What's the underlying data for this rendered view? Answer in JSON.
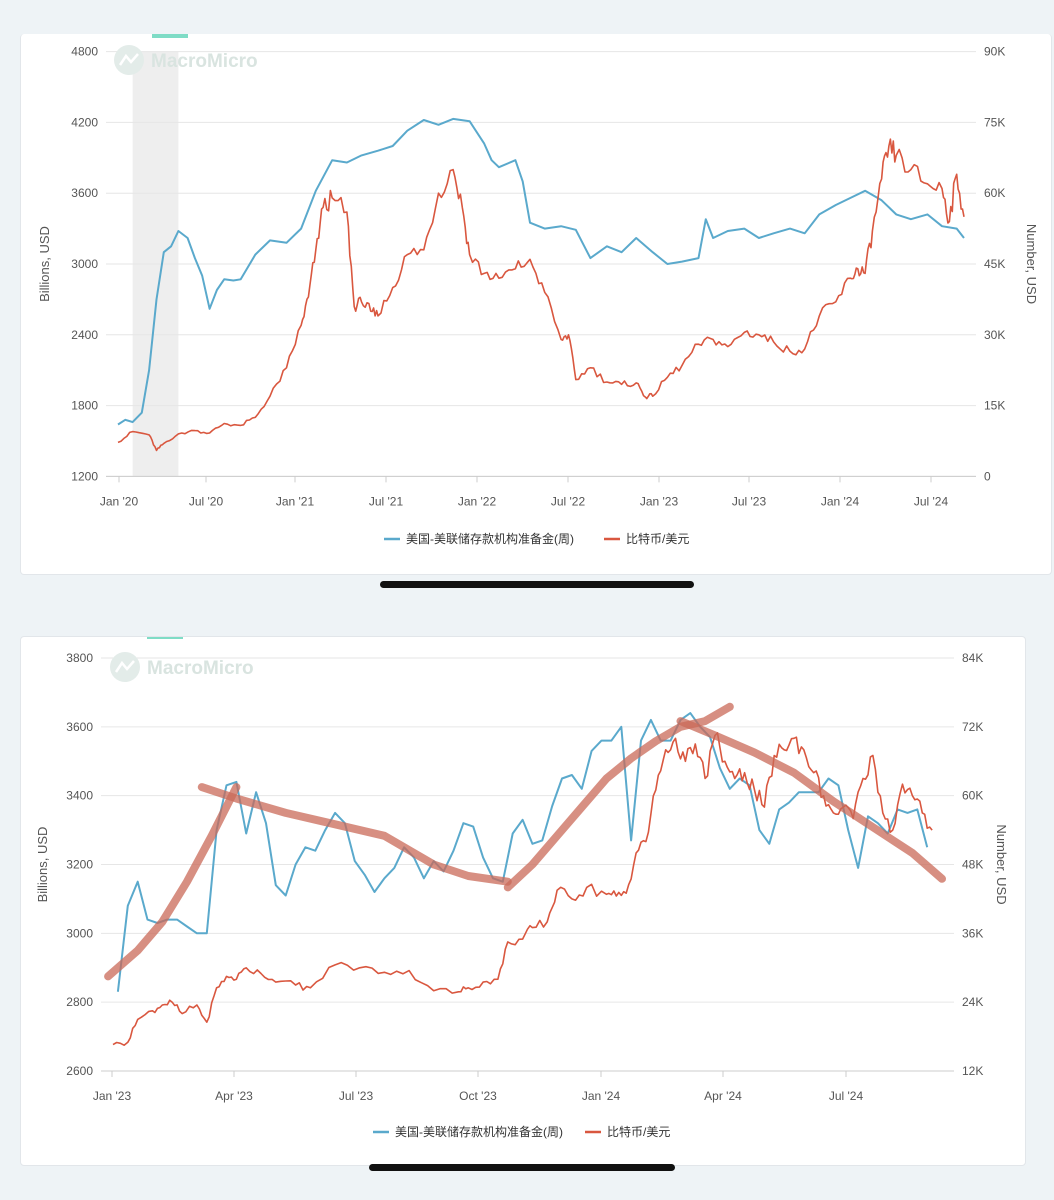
{
  "colors": {
    "reserves": "#5aa9cc",
    "bitcoin": "#d9573f",
    "trend": "#c96a58",
    "accent": "#7fdcc6",
    "grid": "#e6e6e6",
    "shade": "#eeeeee"
  },
  "chart_data": [
    {
      "type": "line",
      "watermark": "MacroMicro",
      "ylabel_left": "Billions, USD",
      "ylabel_right": "Number, USD",
      "ylim_left": [
        1200,
        4800
      ],
      "ylim_right": [
        0,
        90000
      ],
      "yticks_left": [
        "1200",
        "1800",
        "2400",
        "3000",
        "3600",
        "4200",
        "4800"
      ],
      "yticks_right": [
        "0",
        "15K",
        "30K",
        "45K",
        "60K",
        "75K",
        "90K"
      ],
      "xticks": [
        "Jan '20",
        "Jul '20",
        "Jan '21",
        "Jul '21",
        "Jan '22",
        "Jul '22",
        "Jan '23",
        "Jul '23",
        "Jan '24",
        "Jul '24"
      ],
      "xrange": [
        2020.0,
        2024.62
      ],
      "shaded_region": [
        2020.08,
        2020.33
      ],
      "legend": [
        "美国-美联储存款机构准备金(周)",
        "比特币/美元"
      ],
      "series": [
        {
          "name": "美国-美联储存款机构准备金(周)",
          "axis": "left",
          "x": [
            2020.0,
            2020.04,
            2020.08,
            2020.13,
            2020.17,
            2020.21,
            2020.25,
            2020.29,
            2020.33,
            2020.38,
            2020.42,
            2020.46,
            2020.5,
            2020.54,
            2020.58,
            2020.63,
            2020.67,
            2020.75,
            2020.83,
            2020.92,
            2021.0,
            2021.08,
            2021.17,
            2021.25,
            2021.33,
            2021.42,
            2021.5,
            2021.58,
            2021.67,
            2021.75,
            2021.83,
            2021.92,
            2022.0,
            2022.04,
            2022.08,
            2022.17,
            2022.21,
            2022.25,
            2022.33,
            2022.42,
            2022.5,
            2022.58,
            2022.67,
            2022.75,
            2022.83,
            2022.92,
            2023.0,
            2023.08,
            2023.17,
            2023.21,
            2023.25,
            2023.33,
            2023.42,
            2023.5,
            2023.58,
            2023.67,
            2023.75,
            2023.83,
            2023.92,
            2024.0,
            2024.08,
            2024.17,
            2024.25,
            2024.33,
            2024.42,
            2024.5,
            2024.58,
            2024.62
          ],
          "values": [
            1640,
            1680,
            1660,
            1740,
            2100,
            2700,
            3100,
            3150,
            3280,
            3220,
            3050,
            2900,
            2620,
            2780,
            2870,
            2860,
            2870,
            3080,
            3200,
            3180,
            3300,
            3620,
            3880,
            3860,
            3920,
            3960,
            4000,
            4130,
            4220,
            4180,
            4230,
            4210,
            4020,
            3880,
            3820,
            3880,
            3700,
            3350,
            3300,
            3320,
            3290,
            3050,
            3150,
            3100,
            3220,
            3100,
            3000,
            3020,
            3050,
            3380,
            3220,
            3280,
            3300,
            3220,
            3260,
            3300,
            3260,
            3420,
            3500,
            3560,
            3620,
            3540,
            3420,
            3380,
            3420,
            3320,
            3300,
            3220
          ]
        },
        {
          "name": "比特币/美元",
          "axis": "right",
          "x": [
            2020.0,
            2020.08,
            2020.17,
            2020.21,
            2020.25,
            2020.33,
            2020.42,
            2020.5,
            2020.58,
            2020.67,
            2020.75,
            2020.83,
            2020.92,
            2021.0,
            2021.04,
            2021.08,
            2021.12,
            2021.17,
            2021.25,
            2021.29,
            2021.33,
            2021.38,
            2021.42,
            2021.5,
            2021.58,
            2021.67,
            2021.75,
            2021.83,
            2021.88,
            2021.92,
            2022.0,
            2022.08,
            2022.17,
            2022.25,
            2022.33,
            2022.42,
            2022.46,
            2022.5,
            2022.58,
            2022.67,
            2022.75,
            2022.83,
            2022.88,
            2022.92,
            2023.0,
            2023.08,
            2023.17,
            2023.25,
            2023.33,
            2023.42,
            2023.5,
            2023.58,
            2023.67,
            2023.75,
            2023.83,
            2023.92,
            2024.0,
            2024.04,
            2024.08,
            2024.12,
            2024.17,
            2024.21,
            2024.25,
            2024.33,
            2024.42,
            2024.5,
            2024.54,
            2024.58,
            2024.62
          ],
          "values": [
            7200,
            9500,
            8800,
            5500,
            7000,
            9000,
            9700,
            9200,
            11200,
            10800,
            12500,
            17000,
            23000,
            32000,
            38000,
            48000,
            57000,
            59000,
            56000,
            36000,
            37000,
            35000,
            34000,
            40000,
            47000,
            48000,
            60000,
            65000,
            57000,
            47000,
            43000,
            42000,
            44000,
            46000,
            39000,
            29000,
            30000,
            20500,
            23000,
            20000,
            19500,
            19800,
            16800,
            17000,
            21000,
            23500,
            28000,
            29000,
            27500,
            30500,
            30000,
            28500,
            26500,
            27000,
            34000,
            37000,
            42000,
            44000,
            43000,
            52000,
            63000,
            70000,
            68000,
            65000,
            62000,
            61000,
            54000,
            64000,
            55000
          ]
        }
      ]
    },
    {
      "type": "line",
      "watermark": "MacroMicro",
      "ylabel_left": "Billions, USD",
      "ylabel_right": "Number, USD",
      "ylim_left": [
        2600,
        3800
      ],
      "ylim_right": [
        12000,
        84000
      ],
      "yticks_left": [
        "2600",
        "2800",
        "3000",
        "3200",
        "3400",
        "3600",
        "3800"
      ],
      "yticks_right": [
        "12K",
        "24K",
        "36K",
        "48K",
        "60K",
        "72K",
        "84K"
      ],
      "xticks": [
        "Jan '23",
        "Apr '23",
        "Jul '23",
        "Oct '23",
        "Jan '24",
        "Apr '24",
        "Jul '24"
      ],
      "xrange": [
        2023.0,
        2024.68
      ],
      "legend": [
        "美国-美联储存款机构准备金(周)",
        "比特币/美元"
      ],
      "series": [
        {
          "name": "美国-美联储存款机构准备金(周)",
          "axis": "left",
          "x": [
            2023.01,
            2023.03,
            2023.05,
            2023.07,
            2023.09,
            2023.11,
            2023.13,
            2023.15,
            2023.17,
            2023.19,
            2023.21,
            2023.23,
            2023.25,
            2023.27,
            2023.29,
            2023.31,
            2023.33,
            2023.35,
            2023.37,
            2023.39,
            2023.41,
            2023.43,
            2023.45,
            2023.47,
            2023.49,
            2023.51,
            2023.53,
            2023.55,
            2023.57,
            2023.59,
            2023.61,
            2023.63,
            2023.65,
            2023.67,
            2023.69,
            2023.71,
            2023.73,
            2023.75,
            2023.77,
            2023.79,
            2023.81,
            2023.83,
            2023.85,
            2023.87,
            2023.89,
            2023.91,
            2023.93,
            2023.95,
            2023.97,
            2023.99,
            2024.01,
            2024.03,
            2024.05,
            2024.07,
            2024.09,
            2024.11,
            2024.13,
            2024.15,
            2024.17,
            2024.19,
            2024.21,
            2024.23,
            2024.25,
            2024.27,
            2024.29,
            2024.31,
            2024.33,
            2024.35,
            2024.37,
            2024.39,
            2024.41,
            2024.43,
            2024.45,
            2024.47,
            2024.49,
            2024.51,
            2024.53,
            2024.55,
            2024.57,
            2024.59,
            2024.61,
            2024.63,
            2024.65
          ],
          "values": [
            2830,
            3080,
            3150,
            3040,
            3030,
            3040,
            3040,
            3020,
            3000,
            3000,
            3300,
            3430,
            3440,
            3290,
            3410,
            3320,
            3140,
            3110,
            3200,
            3250,
            3240,
            3300,
            3350,
            3320,
            3210,
            3170,
            3120,
            3160,
            3190,
            3250,
            3220,
            3160,
            3210,
            3180,
            3240,
            3320,
            3310,
            3220,
            3160,
            3150,
            3290,
            3330,
            3260,
            3270,
            3370,
            3450,
            3460,
            3420,
            3530,
            3560,
            3560,
            3600,
            3270,
            3560,
            3620,
            3560,
            3560,
            3620,
            3640,
            3600,
            3570,
            3480,
            3420,
            3450,
            3430,
            3300,
            3260,
            3360,
            3380,
            3410,
            3410,
            3410,
            3450,
            3430,
            3300,
            3190,
            3340,
            3320,
            3290,
            3360,
            3350,
            3360,
            3250
          ],
          "x_end": 2024.66
        },
        {
          "name": "比特币/美元",
          "axis": "right",
          "x": [
            2023.0,
            2023.03,
            2023.05,
            2023.08,
            2023.1,
            2023.12,
            2023.14,
            2023.17,
            2023.19,
            2023.21,
            2023.23,
            2023.25,
            2023.27,
            2023.3,
            2023.33,
            2023.37,
            2023.4,
            2023.45,
            2023.5,
            2023.55,
            2023.6,
            2023.65,
            2023.7,
            2023.72,
            2023.75,
            2023.78,
            2023.8,
            2023.83,
            2023.85,
            2023.88,
            2023.9,
            2023.93,
            2023.96,
            2024.0,
            2024.02,
            2024.04,
            2024.06,
            2024.08,
            2024.1,
            2024.12,
            2024.14,
            2024.16,
            2024.18,
            2024.2,
            2024.22,
            2024.24,
            2024.26,
            2024.28,
            2024.3,
            2024.32,
            2024.34,
            2024.36,
            2024.38,
            2024.4,
            2024.42,
            2024.44,
            2024.46,
            2024.48,
            2024.5,
            2024.52,
            2024.54,
            2024.56,
            2024.58,
            2024.6,
            2024.62,
            2024.64,
            2024.66
          ],
          "values": [
            16600,
            17000,
            21000,
            22500,
            23500,
            24000,
            22000,
            23500,
            20500,
            26500,
            28500,
            28000,
            30000,
            29000,
            27500,
            27000,
            26500,
            30500,
            30000,
            29200,
            29500,
            26000,
            25800,
            26500,
            27500,
            28000,
            34500,
            35000,
            37000,
            38000,
            43500,
            42000,
            44000,
            42800,
            42500,
            43000,
            50000,
            52000,
            61000,
            68000,
            70000,
            66000,
            69000,
            63000,
            70500,
            66000,
            63000,
            64000,
            61000,
            58000,
            67000,
            68000,
            70000,
            68000,
            64000,
            60000,
            57000,
            58000,
            56000,
            63000,
            67000,
            57000,
            54000,
            62000,
            60000,
            57000,
            54000
          ]
        }
      ],
      "annotations": {
        "trend_lines": [
          {
            "x": [
              2022.99,
              2023.05,
              2023.1,
              2023.15,
              2023.2,
              2023.25
            ],
            "y": [
              28500,
              33000,
              38000,
              45000,
              53000,
              61500
            ]
          },
          {
            "x": [
              2023.18,
              2023.25,
              2023.35,
              2023.45,
              2023.55,
              2023.65,
              2023.72,
              2023.8
            ],
            "y": [
              61500,
              59500,
              57000,
              55000,
              53000,
              48000,
              46000,
              45000
            ]
          },
          {
            "x": [
              2023.8,
              2023.85,
              2023.9,
              2023.95,
              2024.0,
              2024.05,
              2024.1,
              2024.15,
              2024.2,
              2024.25
            ],
            "y": [
              44000,
              48000,
              53000,
              58000,
              63000,
              66500,
              69500,
              72000,
              73000,
              75500
            ]
          },
          {
            "x": [
              2024.15,
              2024.22,
              2024.3,
              2024.38,
              2024.46,
              2024.54,
              2024.62,
              2024.68
            ],
            "y": [
              73000,
              70500,
              67500,
              64000,
              59000,
              54500,
              50000,
              45500
            ]
          }
        ]
      }
    }
  ]
}
